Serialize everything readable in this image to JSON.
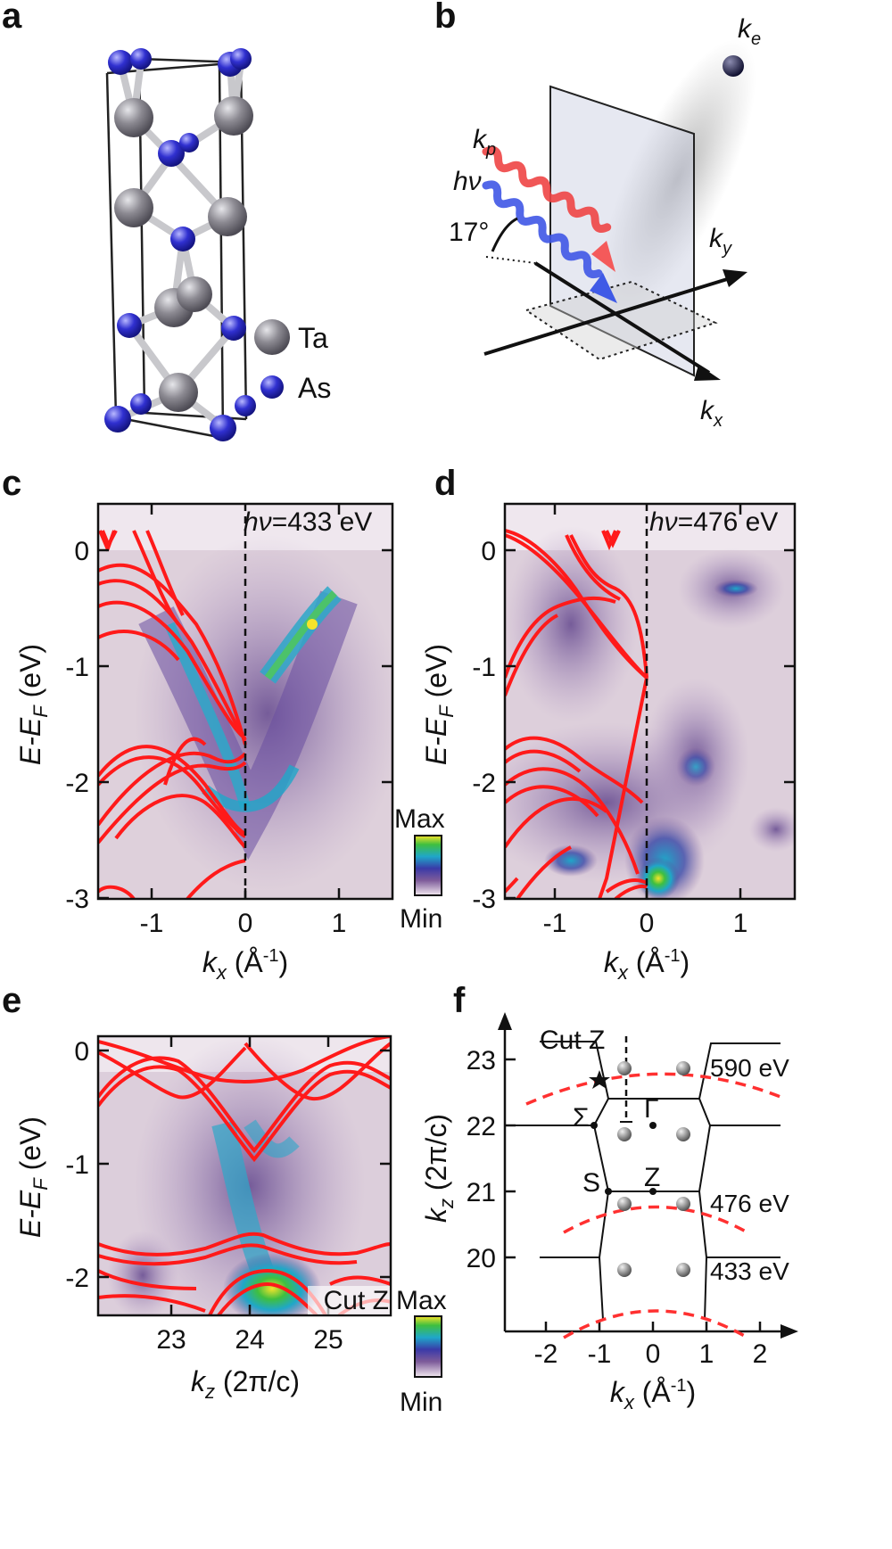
{
  "panels": {
    "a": {
      "letter": "a",
      "legend": [
        {
          "label": "Ta",
          "color": "#86848c"
        },
        {
          "label": "As",
          "color": "#2929c8"
        }
      ]
    },
    "b": {
      "letter": "b",
      "labels": {
        "ke": "k",
        "ke_sub": "e",
        "kp": "k",
        "kp_sub": "p",
        "hv": "hν",
        "angle": "17°",
        "ky": "k",
        "ky_sub": "y",
        "kx": "k",
        "kx_sub": "x"
      }
    },
    "c": {
      "letter": "c",
      "annotation_italic": "hν",
      "annotation_value": "=433 eV"
    },
    "d": {
      "letter": "d",
      "annotation_italic": "hν",
      "annotation_value": "=476 eV"
    },
    "e": {
      "letter": "e",
      "annotation": "Cut Z"
    },
    "f": {
      "letter": "f",
      "cut_label": "Cut Z",
      "points": {
        "Sigma": "Σ",
        "Gamma": "Γ",
        "S": "S",
        "Z": "Z"
      },
      "energies": [
        "590 eV",
        "476 eV",
        "433 eV"
      ]
    }
  },
  "colorbars": {
    "max": "Max",
    "min": "Min"
  },
  "axes": {
    "energy_label": "E-E",
    "energy_sub": "F",
    "energy_unit": " (eV)",
    "kx_label": "k",
    "kx_sub": "x",
    "kx_unit": " (Å",
    "kx_unit_sup": "-1",
    "kx_unit_close": ")",
    "kz_label": "k",
    "kz_sub": "z",
    "kz_unit": " (2π/c)",
    "cd_y_ticks": [
      "0",
      "-1",
      "-2",
      "-3"
    ],
    "cd_x_ticks": [
      "-1",
      "0",
      "1"
    ],
    "e_y_ticks": [
      "0",
      "-1",
      "-2"
    ],
    "e_x_ticks": [
      "23",
      "24",
      "25"
    ],
    "f_y_ticks": [
      "23",
      "22",
      "21",
      "20"
    ],
    "f_x_ticks": [
      "-2",
      "-1",
      "0",
      "1",
      "2"
    ]
  },
  "colors": {
    "band_red": "#ff1a1a",
    "intensity_low": "#e9dbe6",
    "intensity_mid": "#7e5c9a",
    "intensity_high": "#1fa7c9",
    "intensity_peak": "#f6e42a",
    "atom_ta": "#86848c",
    "atom_as": "#2929c8"
  }
}
